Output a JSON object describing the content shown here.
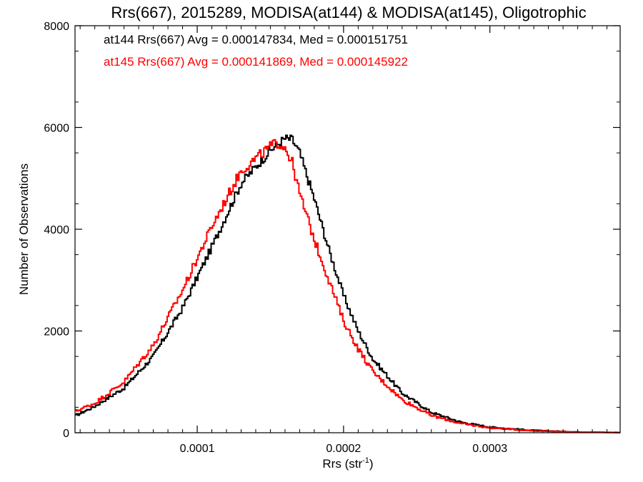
{
  "chart_data": {
    "type": "histogram-step",
    "title": "Rrs(667), 2015289, MODISA(at144) & MODISA(at145), Oligotrophic",
    "xlabel_main": "Rrs (str",
    "xlabel_sup": "-1",
    "xlabel_close": ")",
    "ylabel": "Number of Observations",
    "xlim": [
      1.65e-05,
      0.000389
    ],
    "ylim": [
      0,
      8000
    ],
    "x_ticks": [
      0.0001,
      0.0002,
      0.0003
    ],
    "x_tick_labels": [
      "0.0001",
      "0.0002",
      "0.0003"
    ],
    "y_ticks": [
      0,
      2000,
      4000,
      6000,
      8000
    ],
    "y_tick_labels": [
      "0",
      "2000",
      "4000",
      "6000",
      "8000"
    ],
    "bin_width": 1e-06,
    "annotations": [
      {
        "text": "at144 Rrs(667) Avg = 0.000147834, Med = 0.000151751",
        "color": "#000000"
      },
      {
        "text": "at145 Rrs(667) Avg = 0.000141869, Med = 0.000145922",
        "color": "#ff0000"
      }
    ],
    "series": [
      {
        "color": "#000000",
        "profile": [
          [
            1.65e-05,
            330
          ],
          [
            3e-05,
            520
          ],
          [
            5e-05,
            880
          ],
          [
            7e-05,
            1500
          ],
          [
            9e-05,
            2450
          ],
          [
            0.00011,
            3650
          ],
          [
            0.00013,
            4900
          ],
          [
            0.00015,
            5550
          ],
          [
            0.00016,
            5780
          ],
          [
            0.000165,
            5760
          ],
          [
            0.00017,
            5500
          ],
          [
            0.00018,
            4600
          ],
          [
            0.00019,
            3600
          ],
          [
            0.0002,
            2700
          ],
          [
            0.00021,
            2000
          ],
          [
            0.00022,
            1450
          ],
          [
            0.00024,
            780
          ],
          [
            0.00026,
            400
          ],
          [
            0.00028,
            210
          ],
          [
            0.0003,
            110
          ],
          [
            0.00033,
            45
          ],
          [
            0.00036,
            15
          ],
          [
            0.000389,
            5
          ]
        ],
        "noise": 70
      },
      {
        "color": "#ff0000",
        "profile": [
          [
            1.65e-05,
            420
          ],
          [
            3e-05,
            580
          ],
          [
            5e-05,
            1000
          ],
          [
            7e-05,
            1720
          ],
          [
            9e-05,
            2800
          ],
          [
            0.00011,
            4050
          ],
          [
            0.00013,
            5150
          ],
          [
            0.00015,
            5620
          ],
          [
            0.000155,
            5700
          ],
          [
            0.00016,
            5620
          ],
          [
            0.000165,
            5300
          ],
          [
            0.00017,
            4700
          ],
          [
            0.00018,
            3800
          ],
          [
            0.00019,
            3000
          ],
          [
            0.0002,
            2200
          ],
          [
            0.00021,
            1650
          ],
          [
            0.00022,
            1200
          ],
          [
            0.00024,
            650
          ],
          [
            0.00026,
            340
          ],
          [
            0.00028,
            180
          ],
          [
            0.0003,
            95
          ],
          [
            0.00033,
            38
          ],
          [
            0.00036,
            12
          ],
          [
            0.000389,
            4
          ]
        ],
        "noise": 80
      }
    ]
  }
}
